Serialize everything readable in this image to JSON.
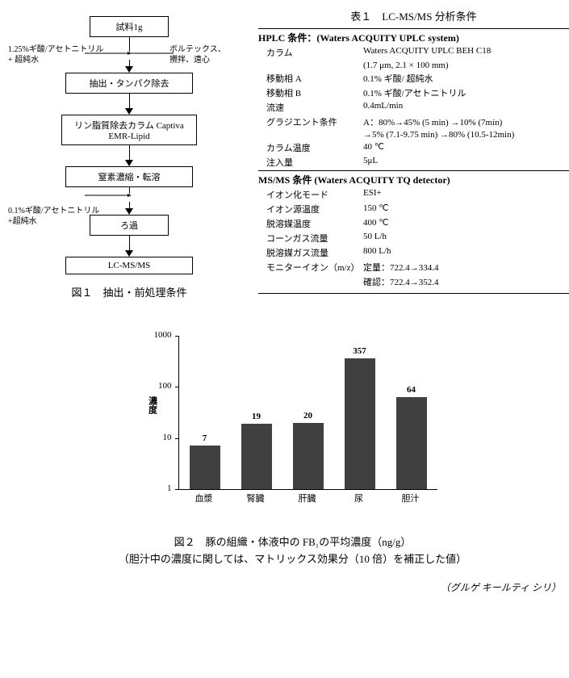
{
  "flowchart": {
    "boxes": [
      "試料1g",
      "抽出・タンパク除去",
      "リン脂質除去カラム Captiva EMR-Lipid",
      "窒素濃縮・転溶",
      "ろ過",
      "LC-MS/MS"
    ],
    "side_left_1": "1.25%ギ酸/アセトニトリル\n+ 超純水",
    "side_right_1": "ボルテックス、\n攪拌、遠心",
    "side_left_2": "0.1%ギ酸/アセトニトリル\n+超純水",
    "caption": "図１　抽出・前処理条件"
  },
  "table": {
    "title": "表１　LC-MS/MS 分析条件",
    "hplc_heading": "HPLC 条件：(Waters ACQUITY UPLC system)",
    "rows_hplc": [
      {
        "l": "カラム",
        "v": "Waters ACQUITY UPLC BEH C18"
      },
      {
        "l": "",
        "v": "(1.7 μm, 2.1 × 100 mm)"
      },
      {
        "l": "移動相 A",
        "v": "0.1% ギ酸/ 超純水"
      },
      {
        "l": "移動相 B",
        "v": "0.1% ギ酸/アセトニトリル"
      },
      {
        "l": "流速",
        "v": "0.4mL/min"
      },
      {
        "l": "グラジエント条件",
        "v": "A：80%→45% (5 min) →10% (7min)"
      },
      {
        "l": "",
        "v": "→5% (7.1-9.75 min) →80% (10.5-12min)"
      },
      {
        "l": "カラム温度",
        "v": "40 ℃"
      },
      {
        "l": "注入量",
        "v": "5μL"
      }
    ],
    "msms_heading": "MS/MS 条件 (Waters ACQUITY TQ detector)",
    "rows_ms": [
      {
        "l": "イオン化モード",
        "v": "ESI+"
      },
      {
        "l": "イオン源温度",
        "v": "150 ℃"
      },
      {
        "l": "脱溶媒温度",
        "v": "400 ℃"
      },
      {
        "l": "コーンガス流量",
        "v": "50 L/h"
      },
      {
        "l": "脱溶媒ガス流量",
        "v": "800 L/h"
      },
      {
        "l": "モニターイオン（m/z）",
        "v": "定量：722.4→334.4"
      },
      {
        "l": "",
        "v": "確認：722.4→352.4"
      }
    ]
  },
  "chart": {
    "type": "bar",
    "categories": [
      "血漿",
      "腎臓",
      "肝臓",
      "尿",
      "胆汁"
    ],
    "values": [
      7,
      19,
      20,
      357,
      64
    ],
    "bar_color": "#404040",
    "y_scale": "log",
    "y_ticks": [
      1,
      10,
      100,
      1000
    ],
    "y_label": "濃度",
    "bg_color": "#ffffff",
    "caption1": "図２　豚の組織・体液中の FB₁の平均濃度（ng/g）",
    "caption2": "（胆汁中の濃度に関しては、マトリックス効果分（10 倍）を補正した値）"
  },
  "author": "（グルゲ キールティ シリ）",
  "colors": {
    "text": "#000000",
    "bg": "#ffffff",
    "bar": "#404040"
  }
}
